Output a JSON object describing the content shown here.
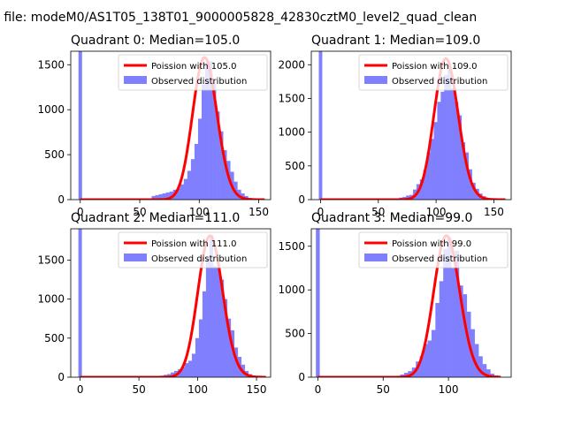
{
  "figure": {
    "suptitle": "n file: modeM0/AS1T05_138T01_9000005828_42830cztM0_level2_quad_clean"
  },
  "colors": {
    "histogram": "#8080ff",
    "poisson": "#ff0000",
    "background": "#ffffff"
  },
  "chart_data": [
    {
      "type": "bar",
      "title": "Quadrant 0: Median=105.0",
      "median": 105.0,
      "legend": [
        "Poission with 105.0",
        "Observed distribution"
      ],
      "legend_placement": "upper right",
      "xlim": [
        -8,
        160
      ],
      "ylim": [
        0,
        1650
      ],
      "xticks": [
        0,
        50,
        100,
        150
      ],
      "yticks": [
        0,
        500,
        1000,
        1500
      ],
      "spike": {
        "x": 0,
        "height": 1650
      },
      "observed": {
        "bin_width": 3,
        "bins": [
          [
            60,
            40
          ],
          [
            63,
            50
          ],
          [
            66,
            60
          ],
          [
            69,
            70
          ],
          [
            72,
            80
          ],
          [
            75,
            90
          ],
          [
            78,
            110
          ],
          [
            81,
            130
          ],
          [
            84,
            170
          ],
          [
            87,
            230
          ],
          [
            90,
            320
          ],
          [
            93,
            450
          ],
          [
            96,
            620
          ],
          [
            99,
            900
          ],
          [
            102,
            1280
          ],
          [
            105,
            1520
          ],
          [
            108,
            1540
          ],
          [
            111,
            1290
          ],
          [
            114,
            980
          ],
          [
            117,
            760
          ],
          [
            120,
            550
          ],
          [
            123,
            430
          ],
          [
            126,
            310
          ],
          [
            129,
            200
          ],
          [
            132,
            110
          ],
          [
            135,
            70
          ],
          [
            138,
            40
          ],
          [
            141,
            20
          ],
          [
            144,
            10
          ],
          [
            147,
            5
          ]
        ]
      },
      "poisson": {
        "lambda": 105.0,
        "peak": 1580,
        "x_range": [
          0,
          155
        ]
      }
    },
    {
      "type": "bar",
      "title": "Quadrant 1: Median=109.0",
      "median": 109.0,
      "legend": [
        "Poission with 109.0",
        "Observed distribution"
      ],
      "legend_placement": "upper right",
      "xlim": [
        -8,
        165
      ],
      "ylim": [
        0,
        2200
      ],
      "xticks": [
        0,
        50,
        100,
        150
      ],
      "yticks": [
        0,
        500,
        1000,
        1500,
        2000
      ],
      "spike": {
        "x": 0,
        "height": 2200
      },
      "observed": {
        "bin_width": 3,
        "bins": [
          [
            68,
            30
          ],
          [
            71,
            40
          ],
          [
            74,
            60
          ],
          [
            77,
            70
          ],
          [
            80,
            150
          ],
          [
            83,
            230
          ],
          [
            86,
            300
          ],
          [
            89,
            440
          ],
          [
            92,
            700
          ],
          [
            95,
            900
          ],
          [
            98,
            1150
          ],
          [
            101,
            1450
          ],
          [
            104,
            1600
          ],
          [
            107,
            1850
          ],
          [
            110,
            2000
          ],
          [
            113,
            1650
          ],
          [
            116,
            1450
          ],
          [
            119,
            1250
          ],
          [
            122,
            850
          ],
          [
            125,
            700
          ],
          [
            128,
            450
          ],
          [
            131,
            250
          ],
          [
            134,
            160
          ],
          [
            137,
            90
          ],
          [
            140,
            50
          ],
          [
            143,
            25
          ],
          [
            146,
            10
          ]
        ]
      },
      "poisson": {
        "lambda": 109.0,
        "peak": 2090,
        "x_range": [
          0,
          160
        ]
      }
    },
    {
      "type": "bar",
      "title": "Quadrant 2: Median=111.0",
      "median": 111.0,
      "legend": [
        "Poission with 111.0",
        "Observed distribution"
      ],
      "legend_placement": "upper right",
      "xlim": [
        -8,
        162
      ],
      "ylim": [
        0,
        1900
      ],
      "xticks": [
        0,
        50,
        100,
        150
      ],
      "yticks": [
        0,
        500,
        1000,
        1500
      ],
      "spike": {
        "x": 0,
        "height": 1900
      },
      "observed": {
        "bin_width": 3,
        "bins": [
          [
            68,
            20
          ],
          [
            71,
            30
          ],
          [
            74,
            40
          ],
          [
            77,
            60
          ],
          [
            80,
            80
          ],
          [
            83,
            100
          ],
          [
            86,
            130
          ],
          [
            89,
            180
          ],
          [
            92,
            210
          ],
          [
            95,
            300
          ],
          [
            98,
            500
          ],
          [
            101,
            740
          ],
          [
            104,
            1100
          ],
          [
            107,
            1530
          ],
          [
            110,
            1820
          ],
          [
            113,
            1420
          ],
          [
            116,
            1400
          ],
          [
            119,
            1250
          ],
          [
            122,
            1000
          ],
          [
            125,
            750
          ],
          [
            128,
            600
          ],
          [
            131,
            380
          ],
          [
            134,
            260
          ],
          [
            137,
            160
          ],
          [
            140,
            80
          ],
          [
            143,
            40
          ],
          [
            146,
            20
          ],
          [
            149,
            10
          ]
        ]
      },
      "poisson": {
        "lambda": 111.0,
        "peak": 1810,
        "x_range": [
          0,
          158
        ]
      }
    },
    {
      "type": "bar",
      "title": "Quadrant 3: Median=99.0",
      "median": 99.0,
      "legend": [
        "Poission with 99.0",
        "Observed distribution"
      ],
      "legend_placement": "upper right",
      "xlim": [
        -5,
        148
      ],
      "ylim": [
        0,
        1700
      ],
      "xticks": [
        0,
        50,
        100
      ],
      "yticks": [
        0,
        500,
        1000,
        1500
      ],
      "spike": {
        "x": 0,
        "height": 1700
      },
      "observed": {
        "bin_width": 3,
        "bins": [
          [
            63,
            30
          ],
          [
            66,
            50
          ],
          [
            69,
            70
          ],
          [
            72,
            110
          ],
          [
            75,
            180
          ],
          [
            78,
            240
          ],
          [
            81,
            380
          ],
          [
            84,
            420
          ],
          [
            87,
            540
          ],
          [
            90,
            850
          ],
          [
            93,
            1100
          ],
          [
            96,
            1470
          ],
          [
            99,
            1600
          ],
          [
            102,
            1250
          ],
          [
            105,
            1450
          ],
          [
            108,
            1050
          ],
          [
            111,
            950
          ],
          [
            114,
            750
          ],
          [
            117,
            550
          ],
          [
            120,
            380
          ],
          [
            123,
            240
          ],
          [
            126,
            150
          ],
          [
            129,
            90
          ],
          [
            132,
            40
          ],
          [
            135,
            20
          ]
        ]
      },
      "poisson": {
        "lambda": 99.0,
        "peak": 1620,
        "x_range": [
          0,
          140
        ]
      }
    }
  ]
}
